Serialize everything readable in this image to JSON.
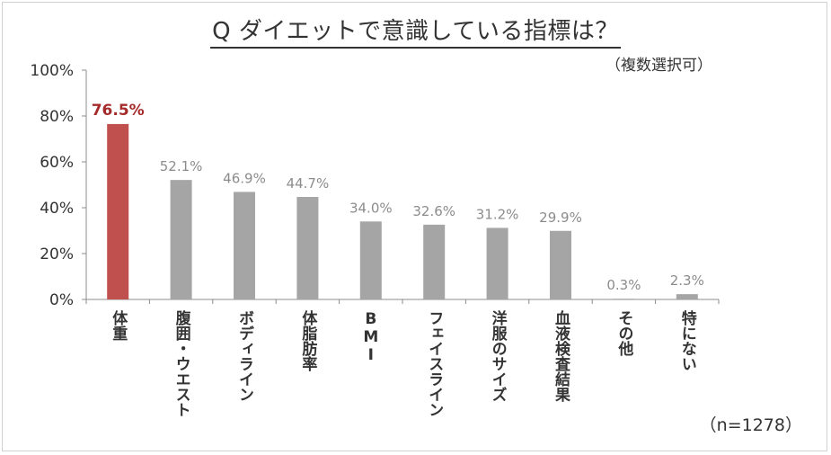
{
  "chart_data": {
    "type": "bar",
    "title": "Q ダイエットで意識している指標は？",
    "subtitle": "（複数選択可）",
    "note": "（n=1278）",
    "categories": [
      "体重",
      "腹囲・ウエスト",
      "ボディライン",
      "体脂肪率",
      "BMI",
      "フェイスライン",
      "洋服のサイズ",
      "血液検査結果",
      "その他",
      "特にない"
    ],
    "values": [
      76.5,
      52.1,
      46.9,
      44.7,
      34.0,
      32.6,
      31.2,
      29.9,
      0.3,
      2.3
    ],
    "value_labels": [
      "76.5%",
      "52.1%",
      "46.9%",
      "44.7%",
      "34.0%",
      "32.6%",
      "31.2%",
      "29.9%",
      "0.3%",
      "2.3%"
    ],
    "ylim": [
      0,
      100
    ],
    "yticks": [
      "0%",
      "20%",
      "40%",
      "60%",
      "80%",
      "100%"
    ],
    "grid": false,
    "colors": {
      "highlight": "#c0504d",
      "default": "#a5a5a5",
      "highlight_label": "#a52a2a",
      "default_label": "#8c8c8c",
      "axis": "#8c8c8c"
    }
  }
}
